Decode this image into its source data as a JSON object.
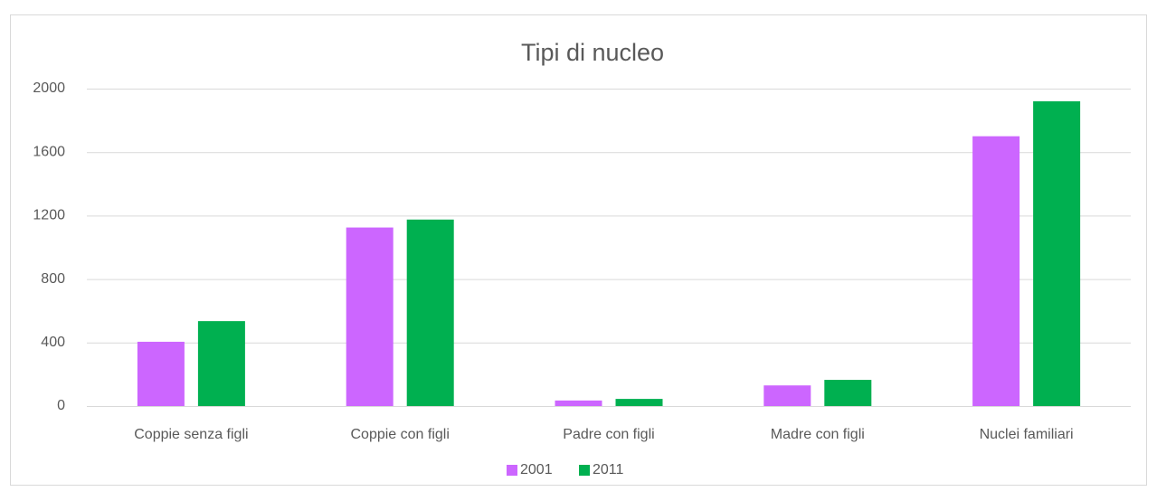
{
  "chart_data": {
    "type": "bar",
    "title": "Tipi di nucleo",
    "categories": [
      "Coppie senza figli",
      "Coppie con figli",
      "Padre con figli",
      "Madre con figli",
      "Nuclei familiari"
    ],
    "series": [
      {
        "name": "2001",
        "color": "#cc66ff",
        "values": [
          405,
          1125,
          35,
          130,
          1700
        ]
      },
      {
        "name": "2011",
        "color": "#00b050",
        "values": [
          535,
          1175,
          45,
          165,
          1920
        ]
      }
    ],
    "ylim": [
      0,
      2000
    ],
    "yticks": [
      0,
      400,
      800,
      1200,
      1600,
      2000
    ],
    "grid": true,
    "legend": "bottom"
  }
}
